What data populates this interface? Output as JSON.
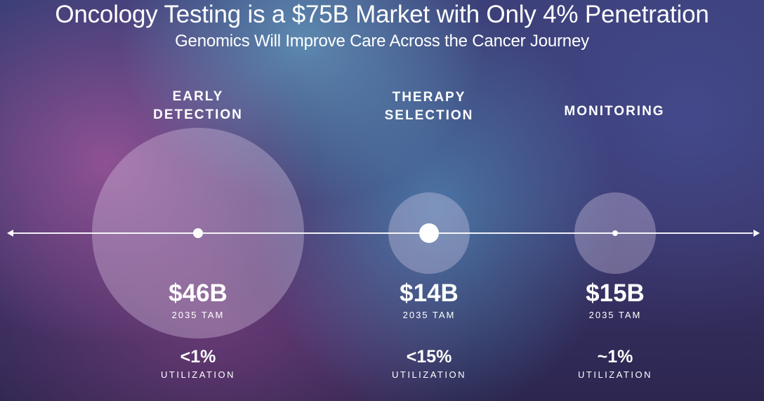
{
  "title": "Oncology Testing is a $75B Market with Only 4% Penetration",
  "subtitle": "Genomics Will Improve Care Across the Cancer Journey",
  "stages": [
    {
      "label": "EARLY\nDETECTION",
      "amount": "$46B",
      "tam_label": "2035 TAM",
      "utilization": "<1%",
      "utilization_label": "UTILIZATION"
    },
    {
      "label": "THERAPY\nSELECTION",
      "amount": "$14B",
      "tam_label": "2035 TAM",
      "utilization": "<15%",
      "utilization_label": "UTILIZATION"
    },
    {
      "label": "MONITORING",
      "amount": "$15B",
      "tam_label": "2035 TAM",
      "utilization": "~1%",
      "utilization_label": "UTILIZATION"
    }
  ],
  "colors": {
    "text": "#ffffff",
    "bubble": "#e6d7f0"
  }
}
